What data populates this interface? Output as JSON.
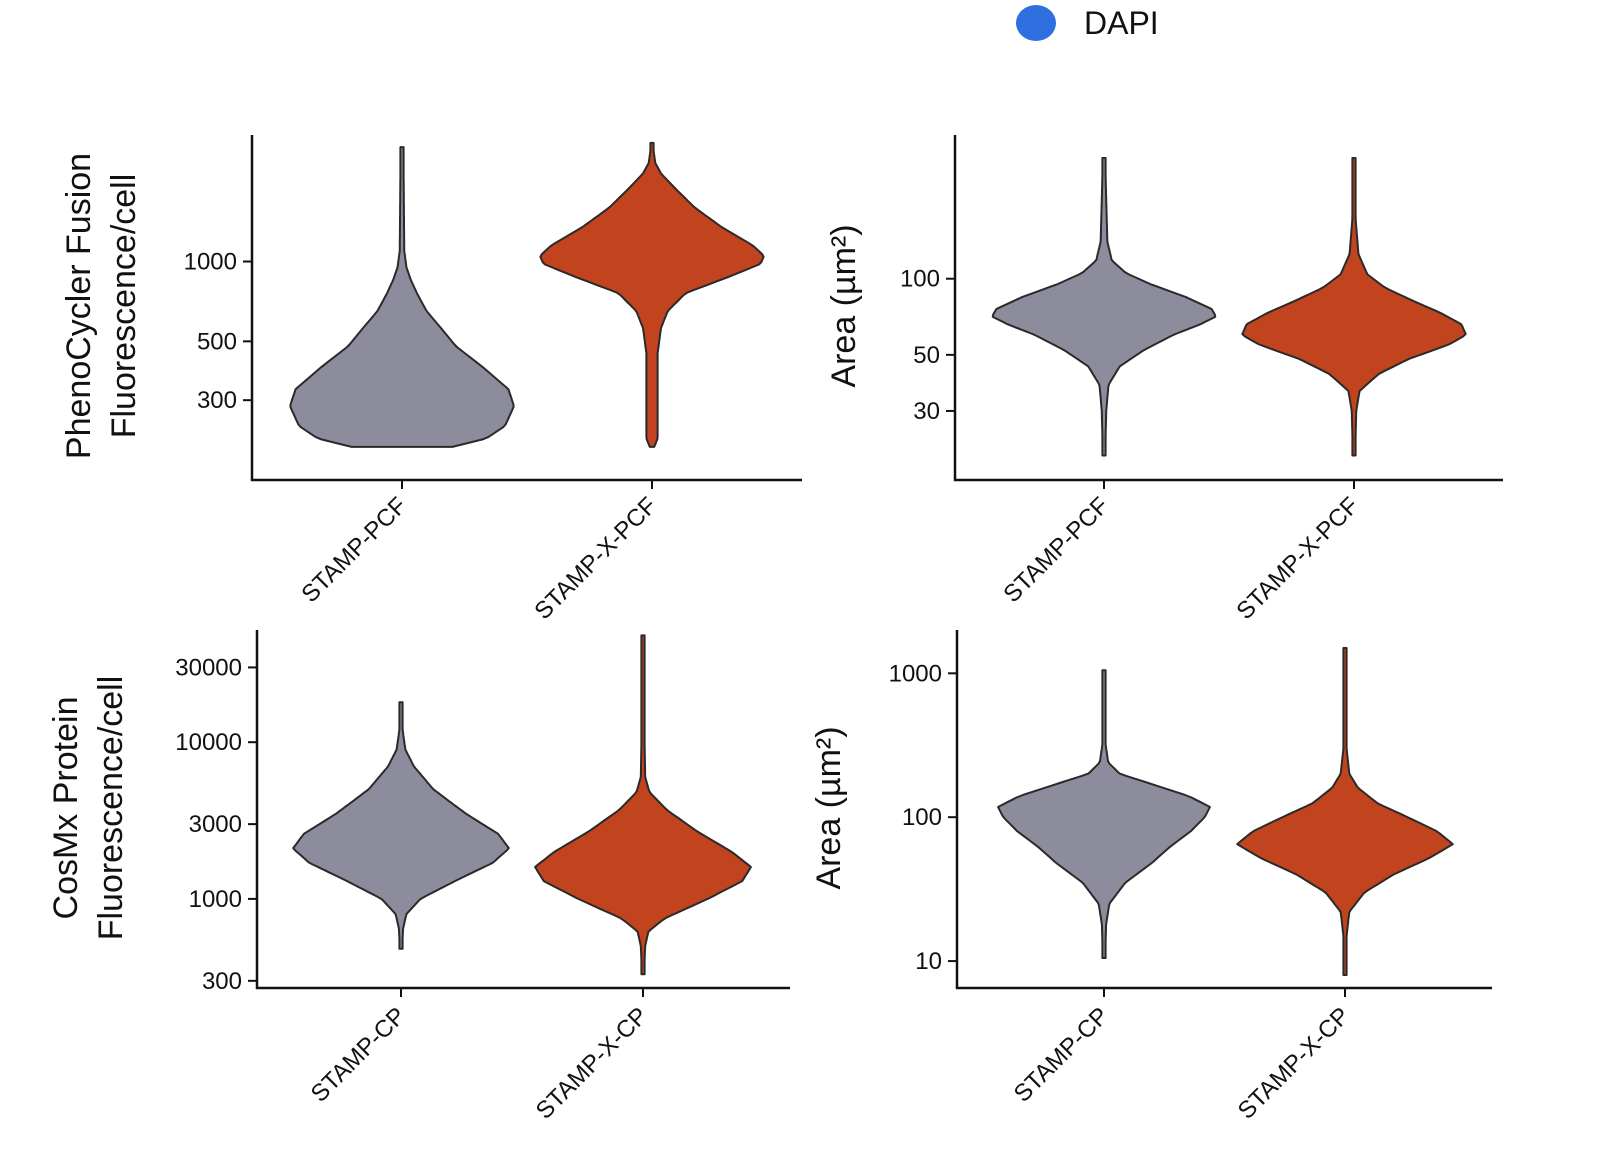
{
  "legend": {
    "label": "DAPI",
    "color": "#2f6fe0"
  },
  "colors": {
    "gray": "#8c8c9c",
    "orange": "#c2441f",
    "outline": "#2a2a2a"
  },
  "chart_data": [
    {
      "type": "violin",
      "scale": "log",
      "ylabel_lines": [
        "PhenoCycler Fusion",
        "Fluorescence/cell"
      ],
      "yticks": [
        300,
        500,
        1000
      ],
      "ylim": [
        150,
        3000
      ],
      "categories": [
        "STAMP-PCF",
        "STAMP-X-PCF"
      ],
      "series": [
        {
          "name": "STAMP-PCF",
          "color": "gray",
          "min": 200,
          "max": 2700,
          "profile": [
            [
              200,
              0.45
            ],
            [
              215,
              0.75
            ],
            [
              240,
              0.92
            ],
            [
              285,
              1.0
            ],
            [
              330,
              0.95
            ],
            [
              400,
              0.72
            ],
            [
              480,
              0.48
            ],
            [
              560,
              0.35
            ],
            [
              650,
              0.22
            ],
            [
              750,
              0.14
            ],
            [
              850,
              0.08
            ],
            [
              950,
              0.04
            ],
            [
              1100,
              0.02
            ],
            [
              2000,
              0.015
            ],
            [
              2700,
              0.01
            ]
          ]
        },
        {
          "name": "STAMP-X-PCF",
          "color": "orange",
          "min": 200,
          "max": 2800,
          "profile": [
            [
              200,
              0.02
            ],
            [
              215,
              0.05
            ],
            [
              300,
              0.05
            ],
            [
              450,
              0.05
            ],
            [
              560,
              0.08
            ],
            [
              650,
              0.14
            ],
            [
              760,
              0.3
            ],
            [
              880,
              0.7
            ],
            [
              980,
              0.97
            ],
            [
              1050,
              1.0
            ],
            [
              1150,
              0.9
            ],
            [
              1350,
              0.62
            ],
            [
              1600,
              0.38
            ],
            [
              1900,
              0.2
            ],
            [
              2150,
              0.08
            ],
            [
              2350,
              0.03
            ],
            [
              2600,
              0.015
            ],
            [
              2800,
              0.01
            ]
          ]
        }
      ]
    },
    {
      "type": "violin",
      "scale": "log",
      "ylabel_lines": [
        "Area (µm²)"
      ],
      "yticks": [
        30,
        50,
        100
      ],
      "ylim": [
        16,
        370
      ],
      "categories": [
        "STAMP-PCF",
        "STAMP-X-PCF"
      ],
      "series": [
        {
          "name": "STAMP-PCF",
          "color": "gray",
          "min": 20,
          "max": 300,
          "profile": [
            [
              20,
              0.01
            ],
            [
              30,
              0.02
            ],
            [
              38,
              0.04
            ],
            [
              45,
              0.14
            ],
            [
              52,
              0.35
            ],
            [
              60,
              0.62
            ],
            [
              66,
              0.86
            ],
            [
              71,
              1.0
            ],
            [
              76,
              0.96
            ],
            [
              85,
              0.72
            ],
            [
              95,
              0.42
            ],
            [
              105,
              0.2
            ],
            [
              118,
              0.07
            ],
            [
              140,
              0.03
            ],
            [
              300,
              0.01
            ]
          ]
        },
        {
          "name": "STAMP-X-PCF",
          "color": "orange",
          "min": 20,
          "max": 300,
          "profile": [
            [
              20,
              0.01
            ],
            [
              30,
              0.02
            ],
            [
              36,
              0.05
            ],
            [
              42,
              0.22
            ],
            [
              48,
              0.48
            ],
            [
              55,
              0.85
            ],
            [
              60,
              1.0
            ],
            [
              66,
              0.96
            ],
            [
              73,
              0.78
            ],
            [
              82,
              0.52
            ],
            [
              92,
              0.28
            ],
            [
              104,
              0.12
            ],
            [
              125,
              0.04
            ],
            [
              170,
              0.015
            ],
            [
              300,
              0.01
            ]
          ]
        }
      ]
    },
    {
      "type": "violin",
      "scale": "log",
      "ylabel_lines": [
        "CosMx Protein",
        "Fluorescence/cell"
      ],
      "yticks": [
        300,
        1000,
        3000,
        10000,
        30000
      ],
      "ylim": [
        270,
        52000
      ],
      "categories": [
        "STAMP-CP",
        "STAMP-X-CP"
      ],
      "series": [
        {
          "name": "STAMP-CP",
          "color": "gray",
          "min": 480,
          "max": 18000,
          "profile": [
            [
              480,
              0.01
            ],
            [
              650,
              0.02
            ],
            [
              800,
              0.05
            ],
            [
              1000,
              0.18
            ],
            [
              1300,
              0.5
            ],
            [
              1700,
              0.85
            ],
            [
              2100,
              1.0
            ],
            [
              2600,
              0.9
            ],
            [
              3500,
              0.6
            ],
            [
              5000,
              0.3
            ],
            [
              7000,
              0.12
            ],
            [
              9000,
              0.04
            ],
            [
              12000,
              0.015
            ],
            [
              18000,
              0.01
            ]
          ]
        },
        {
          "name": "STAMP-X-CP",
          "color": "orange",
          "min": 330,
          "max": 48000,
          "profile": [
            [
              330,
              0.01
            ],
            [
              500,
              0.02
            ],
            [
              620,
              0.05
            ],
            [
              750,
              0.2
            ],
            [
              1000,
              0.6
            ],
            [
              1300,
              0.92
            ],
            [
              1600,
              1.0
            ],
            [
              2000,
              0.82
            ],
            [
              2700,
              0.5
            ],
            [
              3700,
              0.22
            ],
            [
              4800,
              0.06
            ],
            [
              6000,
              0.02
            ],
            [
              15000,
              0.01
            ],
            [
              48000,
              0.005
            ]
          ]
        }
      ]
    },
    {
      "type": "violin",
      "scale": "log",
      "ylabel_lines": [
        "Area (µm²)"
      ],
      "yticks": [
        10,
        100,
        1000
      ],
      "ylim": [
        6.5,
        2000
      ],
      "categories": [
        "STAMP-CP",
        "STAMP-X-CP"
      ],
      "series": [
        {
          "name": "STAMP-CP",
          "color": "gray",
          "min": 10.5,
          "max": 1050,
          "profile": [
            [
              10.5,
              0.01
            ],
            [
              18,
              0.02
            ],
            [
              25,
              0.05
            ],
            [
              35,
              0.2
            ],
            [
              48,
              0.45
            ],
            [
              62,
              0.62
            ],
            [
              80,
              0.82
            ],
            [
              100,
              0.95
            ],
            [
              118,
              1.0
            ],
            [
              140,
              0.8
            ],
            [
              170,
              0.45
            ],
            [
              200,
              0.15
            ],
            [
              240,
              0.04
            ],
            [
              320,
              0.015
            ],
            [
              1050,
              0.005
            ]
          ]
        },
        {
          "name": "STAMP-X-CP",
          "color": "orange",
          "min": 8,
          "max": 1500,
          "profile": [
            [
              8,
              0.005
            ],
            [
              15,
              0.015
            ],
            [
              22,
              0.04
            ],
            [
              30,
              0.18
            ],
            [
              40,
              0.45
            ],
            [
              52,
              0.78
            ],
            [
              65,
              1.0
            ],
            [
              80,
              0.85
            ],
            [
              100,
              0.58
            ],
            [
              125,
              0.3
            ],
            [
              160,
              0.12
            ],
            [
              200,
              0.04
            ],
            [
              300,
              0.015
            ],
            [
              1500,
              0.005
            ]
          ]
        }
      ]
    }
  ]
}
